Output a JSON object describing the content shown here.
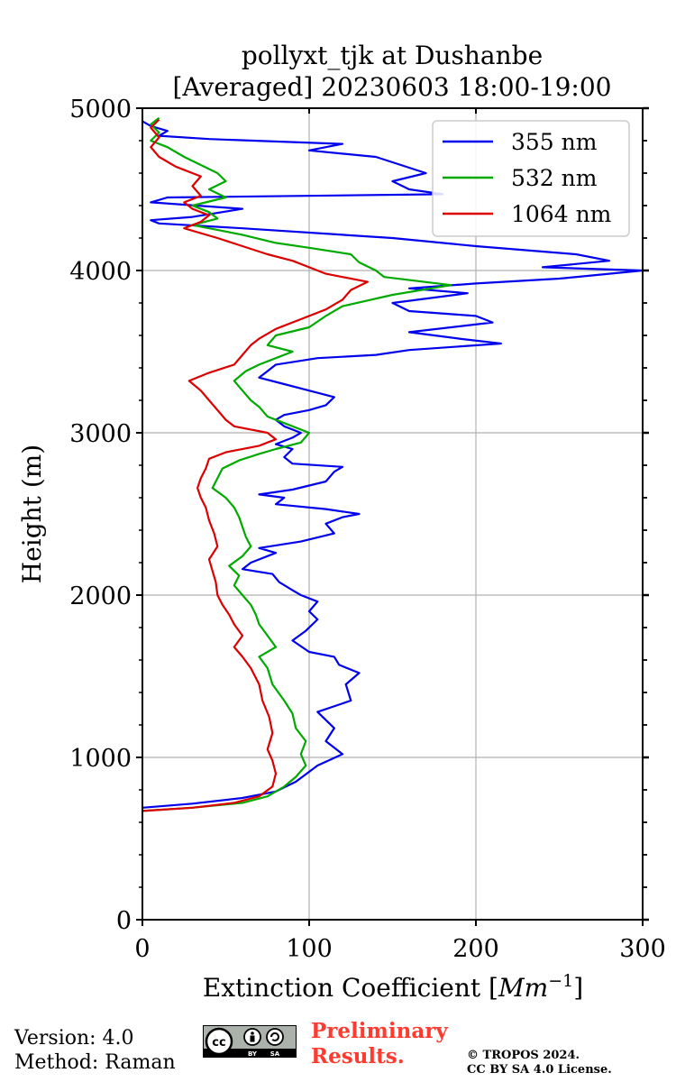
{
  "chart_data": {
    "type": "line",
    "title_line1": "pollyxt_tjk at Dushanbe",
    "title_line2": "[Averaged] 20230603 18:00-19:00",
    "xlabel": "Extinction Coefficient [",
    "xlabel_unit_base": "Mm",
    "xlabel_unit_exp": "−1",
    "xlabel_close": "]",
    "ylabel": "Height (m)",
    "xlim": [
      0,
      300
    ],
    "ylim": [
      0,
      5000
    ],
    "x_ticks": [
      0,
      100,
      200,
      300
    ],
    "y_ticks": [
      0,
      1000,
      2000,
      3000,
      4000,
      5000
    ],
    "grid": true,
    "legend_position": "top-right",
    "series": [
      {
        "name": "355 nm",
        "color": "#0000ee",
        "points": [
          [
            0,
            690
          ],
          [
            30,
            715
          ],
          [
            60,
            750
          ],
          [
            80,
            790
          ],
          [
            92,
            850
          ],
          [
            105,
            950
          ],
          [
            120,
            1020
          ],
          [
            110,
            1100
          ],
          [
            115,
            1180
          ],
          [
            105,
            1280
          ],
          [
            125,
            1350
          ],
          [
            122,
            1450
          ],
          [
            130,
            1520
          ],
          [
            118,
            1570
          ],
          [
            115,
            1620
          ],
          [
            100,
            1650
          ],
          [
            90,
            1720
          ],
          [
            98,
            1780
          ],
          [
            105,
            1850
          ],
          [
            100,
            1900
          ],
          [
            105,
            1960
          ],
          [
            95,
            2000
          ],
          [
            90,
            2030
          ],
          [
            82,
            2080
          ],
          [
            78,
            2130
          ],
          [
            60,
            2160
          ],
          [
            65,
            2200
          ],
          [
            80,
            2260
          ],
          [
            70,
            2290
          ],
          [
            95,
            2330
          ],
          [
            115,
            2380
          ],
          [
            110,
            2440
          ],
          [
            120,
            2480
          ],
          [
            130,
            2500
          ],
          [
            110,
            2530
          ],
          [
            80,
            2560
          ],
          [
            85,
            2600
          ],
          [
            70,
            2620
          ],
          [
            90,
            2650
          ],
          [
            110,
            2700
          ],
          [
            115,
            2760
          ],
          [
            120,
            2790
          ],
          [
            90,
            2810
          ],
          [
            85,
            2850
          ],
          [
            90,
            2900
          ],
          [
            80,
            2930
          ],
          [
            90,
            2970
          ],
          [
            95,
            3000
          ],
          [
            85,
            3040
          ],
          [
            80,
            3080
          ],
          [
            85,
            3110
          ],
          [
            100,
            3140
          ],
          [
            110,
            3170
          ],
          [
            115,
            3220
          ],
          [
            100,
            3260
          ],
          [
            85,
            3300
          ],
          [
            70,
            3340
          ],
          [
            75,
            3380
          ],
          [
            80,
            3420
          ],
          [
            105,
            3460
          ],
          [
            140,
            3480
          ],
          [
            160,
            3510
          ],
          [
            215,
            3550
          ],
          [
            190,
            3580
          ],
          [
            160,
            3620
          ],
          [
            210,
            3680
          ],
          [
            200,
            3720
          ],
          [
            160,
            3750
          ],
          [
            150,
            3800
          ],
          [
            195,
            3860
          ],
          [
            160,
            3890
          ],
          [
            200,
            3920
          ],
          [
            250,
            3950
          ],
          [
            300,
            4000
          ],
          [
            240,
            4020
          ],
          [
            280,
            4060
          ],
          [
            260,
            4100
          ],
          [
            200,
            4150
          ],
          [
            150,
            4200
          ],
          [
            60,
            4260
          ],
          [
            10,
            4290
          ],
          [
            5,
            4310
          ],
          [
            30,
            4330
          ],
          [
            60,
            4380
          ],
          [
            5,
            4420
          ],
          [
            15,
            4450
          ],
          [
            180,
            4470
          ],
          [
            160,
            4500
          ],
          [
            150,
            4550
          ],
          [
            170,
            4600
          ],
          [
            155,
            4650
          ],
          [
            140,
            4700
          ],
          [
            100,
            4740
          ],
          [
            120,
            4780
          ],
          [
            40,
            4810
          ],
          [
            10,
            4830
          ],
          [
            15,
            4860
          ],
          [
            5,
            4890
          ],
          [
            0,
            4920
          ]
        ]
      },
      {
        "name": "532 nm",
        "color": "#00aa00",
        "points": [
          [
            0,
            670
          ],
          [
            30,
            690
          ],
          [
            60,
            720
          ],
          [
            75,
            760
          ],
          [
            85,
            820
          ],
          [
            92,
            880
          ],
          [
            98,
            950
          ],
          [
            95,
            1020
          ],
          [
            98,
            1100
          ],
          [
            92,
            1180
          ],
          [
            90,
            1270
          ],
          [
            85,
            1350
          ],
          [
            78,
            1450
          ],
          [
            75,
            1550
          ],
          [
            70,
            1620
          ],
          [
            80,
            1680
          ],
          [
            75,
            1750
          ],
          [
            70,
            1820
          ],
          [
            68,
            1880
          ],
          [
            65,
            1940
          ],
          [
            60,
            2000
          ],
          [
            55,
            2060
          ],
          [
            58,
            2120
          ],
          [
            52,
            2180
          ],
          [
            60,
            2240
          ],
          [
            65,
            2300
          ],
          [
            62,
            2360
          ],
          [
            60,
            2420
          ],
          [
            58,
            2480
          ],
          [
            55,
            2540
          ],
          [
            50,
            2600
          ],
          [
            42,
            2660
          ],
          [
            45,
            2720
          ],
          [
            48,
            2780
          ],
          [
            58,
            2830
          ],
          [
            70,
            2870
          ],
          [
            80,
            2900
          ],
          [
            95,
            2940
          ],
          [
            100,
            3000
          ],
          [
            85,
            3060
          ],
          [
            75,
            3100
          ],
          [
            70,
            3160
          ],
          [
            65,
            3200
          ],
          [
            60,
            3260
          ],
          [
            55,
            3320
          ],
          [
            62,
            3380
          ],
          [
            70,
            3420
          ],
          [
            80,
            3460
          ],
          [
            90,
            3500
          ],
          [
            75,
            3540
          ],
          [
            80,
            3600
          ],
          [
            100,
            3650
          ],
          [
            110,
            3720
          ],
          [
            120,
            3780
          ],
          [
            150,
            3850
          ],
          [
            185,
            3910
          ],
          [
            145,
            3960
          ],
          [
            140,
            4000
          ],
          [
            130,
            4050
          ],
          [
            125,
            4100
          ],
          [
            100,
            4140
          ],
          [
            80,
            4170
          ],
          [
            60,
            4220
          ],
          [
            40,
            4260
          ],
          [
            30,
            4280
          ],
          [
            45,
            4320
          ],
          [
            40,
            4360
          ],
          [
            30,
            4400
          ],
          [
            50,
            4450
          ],
          [
            40,
            4500
          ],
          [
            50,
            4550
          ],
          [
            45,
            4600
          ],
          [
            35,
            4650
          ],
          [
            25,
            4700
          ],
          [
            15,
            4760
          ],
          [
            5,
            4800
          ],
          [
            10,
            4850
          ],
          [
            5,
            4900
          ],
          [
            10,
            4940
          ]
        ]
      },
      {
        "name": "1064 nm",
        "color": "#dd0000",
        "points": [
          [
            0,
            670
          ],
          [
            30,
            690
          ],
          [
            55,
            720
          ],
          [
            70,
            760
          ],
          [
            78,
            820
          ],
          [
            80,
            900
          ],
          [
            78,
            980
          ],
          [
            75,
            1050
          ],
          [
            78,
            1150
          ],
          [
            76,
            1250
          ],
          [
            72,
            1350
          ],
          [
            70,
            1450
          ],
          [
            65,
            1550
          ],
          [
            60,
            1620
          ],
          [
            55,
            1680
          ],
          [
            60,
            1750
          ],
          [
            55,
            1820
          ],
          [
            52,
            1880
          ],
          [
            48,
            1940
          ],
          [
            45,
            2000
          ],
          [
            44,
            2080
          ],
          [
            42,
            2150
          ],
          [
            40,
            2220
          ],
          [
            45,
            2300
          ],
          [
            43,
            2380
          ],
          [
            40,
            2460
          ],
          [
            38,
            2540
          ],
          [
            35,
            2600
          ],
          [
            33,
            2660
          ],
          [
            35,
            2720
          ],
          [
            38,
            2780
          ],
          [
            40,
            2840
          ],
          [
            50,
            2880
          ],
          [
            70,
            2920
          ],
          [
            80,
            2960
          ],
          [
            75,
            3000
          ],
          [
            55,
            3040
          ],
          [
            50,
            3080
          ],
          [
            45,
            3140
          ],
          [
            40,
            3200
          ],
          [
            35,
            3260
          ],
          [
            28,
            3320
          ],
          [
            40,
            3370
          ],
          [
            55,
            3420
          ],
          [
            60,
            3480
          ],
          [
            65,
            3540
          ],
          [
            70,
            3580
          ],
          [
            80,
            3640
          ],
          [
            95,
            3700
          ],
          [
            110,
            3760
          ],
          [
            120,
            3820
          ],
          [
            125,
            3880
          ],
          [
            135,
            3930
          ],
          [
            110,
            3980
          ],
          [
            100,
            4020
          ],
          [
            90,
            4060
          ],
          [
            75,
            4100
          ],
          [
            60,
            4150
          ],
          [
            45,
            4200
          ],
          [
            25,
            4260
          ],
          [
            35,
            4300
          ],
          [
            40,
            4340
          ],
          [
            30,
            4380
          ],
          [
            25,
            4420
          ],
          [
            35,
            4460
          ],
          [
            30,
            4520
          ],
          [
            35,
            4580
          ],
          [
            20,
            4640
          ],
          [
            10,
            4700
          ],
          [
            5,
            4760
          ],
          [
            10,
            4820
          ],
          [
            5,
            4880
          ],
          [
            10,
            4930
          ]
        ]
      }
    ]
  },
  "footer": {
    "version": "Version: 4.0",
    "method": "Method: Raman",
    "prelim_line1": "Preliminary",
    "prelim_line2": "Results.",
    "copyright_line1": "© TROPOS 2024.",
    "copyright_line2": "CC BY SA 4.0 License."
  },
  "badge": {
    "cc": "cc",
    "by": "BY",
    "sa": "SA"
  }
}
